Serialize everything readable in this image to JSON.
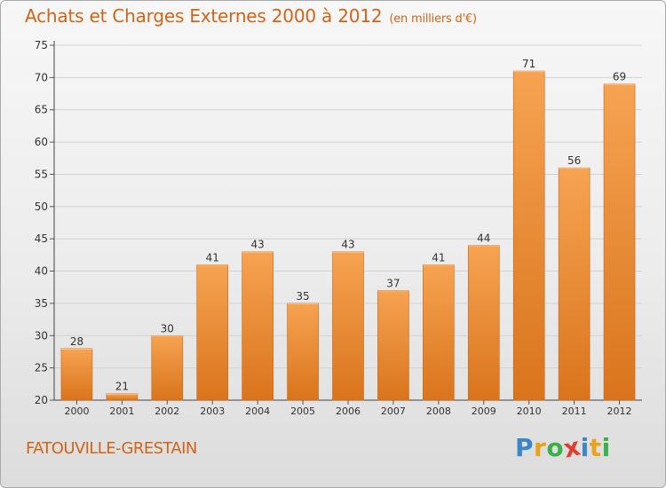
{
  "title": "Achats et Charges Externes 2000 à 2012",
  "unit": "(en milliers d'€)",
  "location": "FATOUVILLE-GRESTAIN",
  "brand": {
    "text": "Proxiti",
    "letters": [
      {
        "char": "P",
        "color": "#3b86c8"
      },
      {
        "char": "r",
        "color": "#e8a21b"
      },
      {
        "char": "o",
        "color": "#3bb04a"
      },
      {
        "char": "x",
        "color": "#e23c2f"
      },
      {
        "char": "i",
        "color": "#3b86c8"
      },
      {
        "char": "t",
        "color": "#e8a21b"
      },
      {
        "char": "i",
        "color": "#3bb04a"
      }
    ]
  },
  "colors": {
    "accent": "#d0651a",
    "bar_top": "#f6a352",
    "bar_bottom": "#d9741c",
    "bar_edge": "#c4661c"
  },
  "chart_data": {
    "type": "bar",
    "categories": [
      "2000",
      "2001",
      "2002",
      "2003",
      "2004",
      "2005",
      "2006",
      "2007",
      "2008",
      "2009",
      "2010",
      "2011",
      "2012"
    ],
    "values": [
      28,
      21,
      30,
      41,
      43,
      35,
      43,
      37,
      41,
      44,
      71,
      56,
      69
    ],
    "ylim": [
      20,
      75
    ],
    "yticks": [
      20,
      25,
      30,
      35,
      40,
      45,
      50,
      55,
      60,
      65,
      70,
      75
    ],
    "grid": true,
    "data_labels": true
  }
}
